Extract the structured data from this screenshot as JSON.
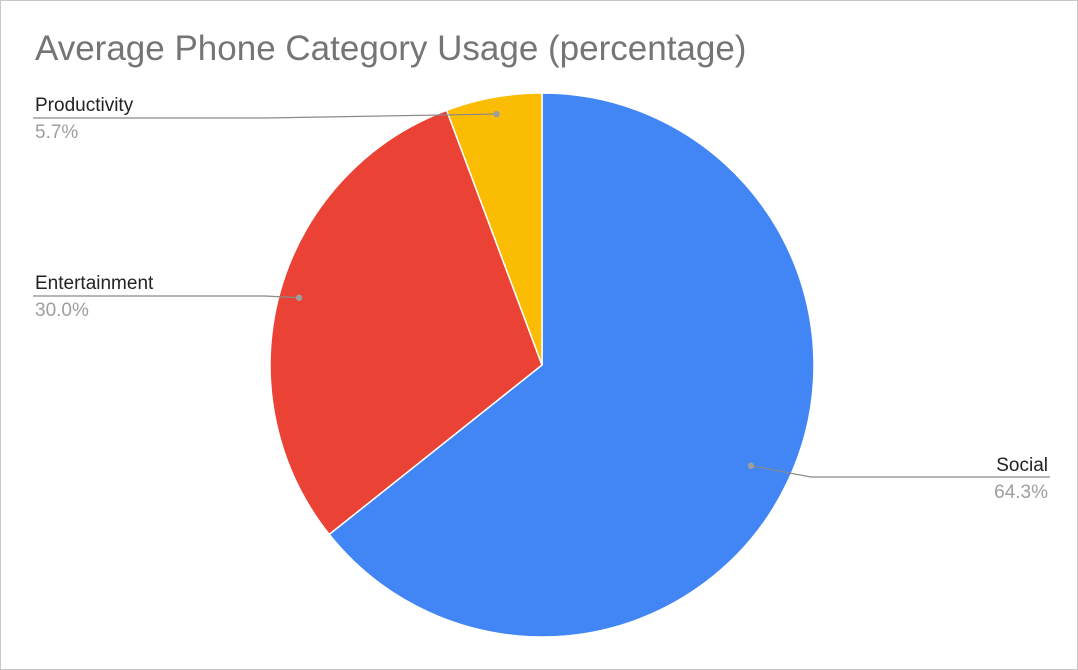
{
  "chart_data": {
    "type": "pie",
    "title": "Average Phone Category Usage (percentage)",
    "start_angle_deg": 0,
    "direction": "clockwise",
    "slices": [
      {
        "name": "Social",
        "value": 64.3,
        "value_label": "64.3%",
        "color": "#4285F4"
      },
      {
        "name": "Entertainment",
        "value": 30.0,
        "value_label": "30.0%",
        "color": "#EA4335"
      },
      {
        "name": "Productivity",
        "value": 5.7,
        "value_label": "5.7%",
        "color": "#FBBC04"
      }
    ],
    "legend": "none",
    "labels": "outside-with-leader-lines"
  }
}
